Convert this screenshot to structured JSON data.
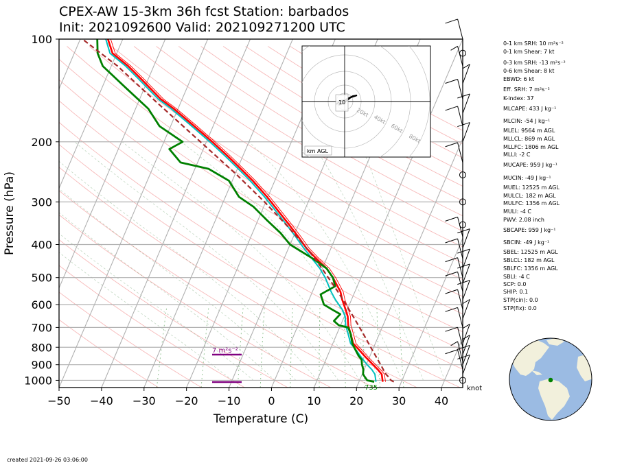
{
  "title_line1": "CPEX-AW 15-3km  36h fcst  Station: barbados",
  "title_line2": "Init: 2021092600  Valid: 202109271200 UTC",
  "footer": "created 2021-09-26 03:06:00",
  "chart_data": {
    "type": "line",
    "xlabel": "Temperature (C)",
    "ylabel": "Pressure (hPa)",
    "xlim": [
      -50,
      45
    ],
    "ylim": [
      1050,
      100
    ],
    "yscale": "log",
    "x_ticks": [
      "−50",
      "−40",
      "−30",
      "−20",
      "−10",
      "0",
      "10",
      "20",
      "30",
      "40"
    ],
    "x_tick_values": [
      -50,
      -40,
      -30,
      -20,
      -10,
      0,
      10,
      20,
      30,
      40
    ],
    "y_ticks": [
      "100",
      "200",
      "300",
      "400",
      "500",
      "600",
      "700",
      "800",
      "900",
      "1000"
    ],
    "y_tick_values": [
      100,
      200,
      300,
      400,
      500,
      600,
      700,
      800,
      900,
      1000
    ],
    "skew": 35,
    "colors": {
      "temperature": "#ff0000",
      "dewpoint": "#008000",
      "parcel": "#a52a2a",
      "virtual": "#00bfbf",
      "srh": "#800080"
    },
    "series": [
      {
        "key": "temperature",
        "p": [
          1010,
          1000,
          960,
          930,
          900,
          850,
          800,
          780,
          730,
          690,
          650,
          620,
          580,
          550,
          500,
          470,
          440,
          410,
          380,
          350,
          320,
          290,
          260,
          240,
          220,
          200,
          180,
          160,
          150,
          130,
          120,
          110,
          100
        ],
        "t": [
          25.6,
          25.4,
          24.6,
          23.2,
          21.6,
          18.8,
          16.0,
          14.8,
          13.2,
          11.8,
          10.8,
          9.6,
          7.8,
          6.6,
          3.4,
          1.0,
          -2.4,
          -5.8,
          -8.8,
          -12.2,
          -16.0,
          -20.2,
          -25.2,
          -29.2,
          -33.6,
          -38.6,
          -44.4,
          -51.0,
          -55.0,
          -62.0,
          -66.0,
          -71.0,
          -73.5
        ]
      },
      {
        "key": "virtual",
        "p": [
          1010,
          1000,
          960,
          930,
          900,
          850,
          800,
          780,
          730,
          690,
          650,
          620,
          580,
          550,
          500,
          470,
          440,
          410,
          380,
          350,
          320,
          290,
          260,
          240,
          220,
          200,
          180,
          160,
          150,
          130,
          120,
          110,
          100
        ],
        "t": [
          24.0,
          23.8,
          23.0,
          21.8,
          20.2,
          17.8,
          15.4,
          14.2,
          12.6,
          11.2,
          10.2,
          8.8,
          6.2,
          4.4,
          1.6,
          -0.6,
          -3.4,
          -6.4,
          -9.4,
          -12.8,
          -16.6,
          -20.8,
          -25.8,
          -29.8,
          -34.2,
          -39.2,
          -45.0,
          -51.6,
          -55.6,
          -62.6,
          -66.6,
          -71.6,
          -74.0
        ]
      },
      {
        "key": "dewpoint",
        "p": [
          1010,
          1000,
          980,
          960,
          930,
          900,
          870,
          850,
          800,
          780,
          730,
          700,
          690,
          670,
          640,
          620,
          600,
          560,
          530,
          500,
          470,
          440,
          400,
          370,
          340,
          310,
          290,
          260,
          240,
          230,
          210,
          200,
          180,
          160,
          140,
          120,
          110,
          100
        ],
        "td": [
          23.6,
          21.8,
          21.0,
          20.2,
          19.8,
          19.0,
          18.4,
          17.4,
          15.4,
          14.6,
          13.2,
          12.0,
          9.6,
          8.0,
          8.8,
          6.4,
          4.0,
          2.2,
          4.8,
          3.4,
          1.0,
          -3.2,
          -10.0,
          -13.4,
          -17.8,
          -22.4,
          -26.8,
          -30.8,
          -36.8,
          -44.0,
          -48.0,
          -45.6,
          -52.6,
          -57.0,
          -64.0,
          -72.0,
          -74.5,
          -76.0
        ]
      },
      {
        "key": "parcel",
        "p": [
          1010,
          1000,
          980,
          960,
          930,
          900,
          850,
          800,
          750,
          700,
          650,
          600,
          550,
          500,
          450,
          400,
          350,
          300,
          250,
          200,
          150,
          120,
          100
        ],
        "t": [
          28.2,
          27.4,
          26.6,
          25.6,
          24.5,
          23.4,
          21.4,
          19.3,
          17.1,
          14.7,
          12.1,
          9.2,
          6.0,
          2.3,
          -1.8,
          -6.8,
          -12.9,
          -20.3,
          -29.5,
          -41.4,
          -56.8,
          -68.5,
          -79.5
        ]
      }
    ],
    "labels": [
      {
        "text": "7 m²s⁻²",
        "value_kind": "srh"
      },
      {
        "text": "735",
        "value_kind": "parcel"
      }
    ]
  },
  "hodograph": {
    "ring_labels": [
      "20kt",
      "40kt",
      "60kt",
      "80kt"
    ],
    "box_label": "km AGL",
    "height_label": "10"
  },
  "wind_barb_unit": "knot",
  "stats": [
    "0-1 km SRH: 10 m²s⁻²",
    "0-1 km Shear: 7 kt",
    "0-3 km SRH: -13 m²s⁻²",
    "0-6 km Shear: 8 kt",
    "EBWD: 6 kt",
    "Eff. SRH: 7 m²s⁻²",
    "K-index: 37",
    "MLCAPE: 433 J kg⁻¹",
    "MLCIN: -54 J kg⁻¹",
    "MLEL: 9564 m AGL",
    "MLLCL: 869 m AGL",
    "MLLFC: 1806 m AGL",
    "MLLI: -2 C",
    "MUCAPE: 959 J kg⁻¹",
    "MUCIN: -49 J kg⁻¹",
    "MUEL: 12525 m AGL",
    "MULCL: 182 m AGL",
    "MULFC: 1356 m AGL",
    "MULI: -4 C",
    "PWV: 2.08 inch",
    "SBCAPE: 959 J kg⁻¹",
    "SBCIN: -49 J kg⁻¹",
    "SBEL: 12525 m AGL",
    "SBLCL: 182 m AGL",
    "SBLFC: 1356 m AGL",
    "SBLI: -4 C",
    "SCP: 0.0",
    "SHIP: 0.1",
    "STP(cin): 0.0",
    "STP(fix): 0.0"
  ]
}
